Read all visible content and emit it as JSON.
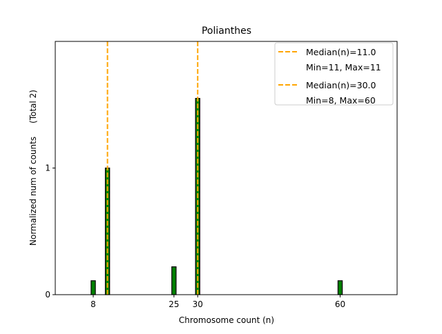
{
  "chart_data": {
    "type": "bar",
    "title": "Polianthes",
    "xlabel": "Chromosome count (n)",
    "ylabel": "Normalized num of counts     (Total 2)",
    "xlim": [
      0,
      72
    ],
    "ylim": [
      0,
      2.0
    ],
    "xticks": [
      8,
      25,
      30,
      60
    ],
    "yticks": [
      0,
      1
    ],
    "grid": false,
    "legend_position": "top-right",
    "series": [
      {
        "name": "Median(n)=11.0",
        "sublabel": "Min=11, Max=11",
        "bars": [
          {
            "x": 11,
            "y": 1.0
          }
        ],
        "median": 11.0,
        "color": "#008000",
        "median_color": "#FFA500"
      },
      {
        "name": "Median(n)=30.0",
        "sublabel": "Min=8, Max=60",
        "bars": [
          {
            "x": 8,
            "y": 0.11
          },
          {
            "x": 25,
            "y": 0.22
          },
          {
            "x": 30,
            "y": 1.55
          },
          {
            "x": 60,
            "y": 0.11
          }
        ],
        "median": 30.0,
        "color": "#008000",
        "median_color": "#FFA500"
      }
    ]
  }
}
